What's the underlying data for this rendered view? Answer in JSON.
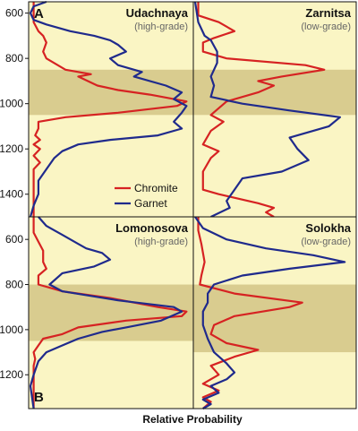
{
  "chart_data": {
    "type": "line",
    "xlabel": "Relative Probability",
    "ylabel": "",
    "colors": {
      "background": "#faf5c4",
      "band": "#d9cc8f",
      "Chromite": "#d62222",
      "Garnet": "#1f2a8c"
    },
    "legend": {
      "placement": "middle-right of panel A",
      "entries": [
        "Chromite",
        "Garnet"
      ]
    },
    "panels": [
      {
        "letter": "A",
        "title": "Udachnaya",
        "subtitle": "(high-grade)",
        "ylim": [
          550,
          1500
        ],
        "yticks": [
          600,
          800,
          1000,
          1200,
          1400
        ],
        "band": [
          850,
          1050
        ],
        "series": [
          {
            "name": "Chromite",
            "points": [
              [
                0.02,
                550
              ],
              [
                0.02,
                640
              ],
              [
                0.05,
                680
              ],
              [
                0.08,
                700
              ],
              [
                0.1,
                730
              ],
              [
                0.08,
                770
              ],
              [
                0.1,
                800
              ],
              [
                0.22,
                850
              ],
              [
                0.38,
                870
              ],
              [
                0.3,
                880
              ],
              [
                0.42,
                920
              ],
              [
                0.55,
                940
              ],
              [
                0.75,
                960
              ],
              [
                0.98,
                990
              ],
              [
                0.92,
                1010
              ],
              [
                0.55,
                1040
              ],
              [
                0.22,
                1060
              ],
              [
                0.05,
                1080
              ],
              [
                0.05,
                1110
              ],
              [
                0.03,
                1140
              ],
              [
                0.06,
                1160
              ],
              [
                0.02,
                1180
              ],
              [
                0.06,
                1200
              ],
              [
                0.02,
                1230
              ],
              [
                0.06,
                1260
              ],
              [
                0.02,
                1290
              ],
              [
                0.02,
                1500
              ]
            ]
          },
          {
            "name": "Garnet",
            "points": [
              [
                0.1,
                550
              ],
              [
                0.02,
                570
              ],
              [
                0.0,
                600
              ],
              [
                0.02,
                630
              ],
              [
                0.1,
                650
              ],
              [
                0.25,
                680
              ],
              [
                0.4,
                700
              ],
              [
                0.5,
                720
              ],
              [
                0.55,
                740
              ],
              [
                0.6,
                770
              ],
              [
                0.5,
                800
              ],
              [
                0.55,
                830
              ],
              [
                0.7,
                860
              ],
              [
                0.65,
                880
              ],
              [
                0.85,
                920
              ],
              [
                0.95,
                950
              ],
              [
                0.9,
                980
              ],
              [
                0.98,
                1010
              ],
              [
                0.95,
                1040
              ],
              [
                0.9,
                1080
              ],
              [
                0.95,
                1110
              ],
              [
                0.8,
                1140
              ],
              [
                0.5,
                1160
              ],
              [
                0.3,
                1180
              ],
              [
                0.2,
                1210
              ],
              [
                0.15,
                1240
              ],
              [
                0.1,
                1290
              ],
              [
                0.05,
                1340
              ],
              [
                0.05,
                1400
              ],
              [
                0.02,
                1450
              ],
              [
                0.0,
                1500
              ]
            ]
          }
        ]
      },
      {
        "letter": "",
        "title": "Zarnitsa",
        "subtitle": "(low-grade)",
        "ylim": [
          550,
          1500
        ],
        "yticks": [
          600,
          800,
          1000,
          1200,
          1400
        ],
        "band": [
          850,
          1050
        ],
        "series": [
          {
            "name": "Chromite",
            "points": [
              [
                0.02,
                550
              ],
              [
                0.02,
                610
              ],
              [
                0.15,
                640
              ],
              [
                0.25,
                680
              ],
              [
                0.12,
                710
              ],
              [
                0.05,
                730
              ],
              [
                0.05,
                770
              ],
              [
                0.2,
                800
              ],
              [
                0.7,
                830
              ],
              [
                0.82,
                850
              ],
              [
                0.55,
                880
              ],
              [
                0.4,
                900
              ],
              [
                0.5,
                920
              ],
              [
                0.4,
                950
              ],
              [
                0.2,
                990
              ],
              [
                0.1,
                1050
              ],
              [
                0.18,
                1080
              ],
              [
                0.1,
                1120
              ],
              [
                0.05,
                1180
              ],
              [
                0.15,
                1210
              ],
              [
                0.1,
                1240
              ],
              [
                0.05,
                1300
              ],
              [
                0.05,
                1380
              ],
              [
                0.15,
                1400
              ],
              [
                0.4,
                1440
              ],
              [
                0.5,
                1460
              ],
              [
                0.45,
                1480
              ],
              [
                0.5,
                1500
              ]
            ]
          },
          {
            "name": "Garnet",
            "points": [
              [
                0.0,
                550
              ],
              [
                0.02,
                640
              ],
              [
                0.06,
                700
              ],
              [
                0.1,
                720
              ],
              [
                0.14,
                770
              ],
              [
                0.14,
                820
              ],
              [
                0.12,
                850
              ],
              [
                0.1,
                880
              ],
              [
                0.12,
                920
              ],
              [
                0.1,
                970
              ],
              [
                0.3,
                1000
              ],
              [
                0.6,
                1030
              ],
              [
                0.92,
                1060
              ],
              [
                0.85,
                1100
              ],
              [
                0.6,
                1150
              ],
              [
                0.65,
                1200
              ],
              [
                0.72,
                1250
              ],
              [
                0.55,
                1300
              ],
              [
                0.3,
                1330
              ],
              [
                0.25,
                1380
              ],
              [
                0.2,
                1430
              ],
              [
                0.22,
                1460
              ],
              [
                0.1,
                1500
              ]
            ]
          }
        ]
      },
      {
        "letter": "B",
        "title": "Lomonosova",
        "subtitle": "(high-grade)",
        "ylim": [
          500,
          1350
        ],
        "yticks": [
          600,
          800,
          1000,
          1200
        ],
        "band": [
          800,
          1050
        ],
        "series": [
          {
            "name": "Chromite",
            "points": [
              [
                0.02,
                500
              ],
              [
                0.02,
                570
              ],
              [
                0.05,
                610
              ],
              [
                0.08,
                650
              ],
              [
                0.08,
                700
              ],
              [
                0.1,
                730
              ],
              [
                0.05,
                760
              ],
              [
                0.05,
                800
              ],
              [
                0.2,
                830
              ],
              [
                0.5,
                860
              ],
              [
                0.8,
                900
              ],
              [
                0.98,
                920
              ],
              [
                0.95,
                940
              ],
              [
                0.6,
                960
              ],
              [
                0.3,
                990
              ],
              [
                0.2,
                1020
              ],
              [
                0.08,
                1040
              ],
              [
                0.05,
                1070
              ],
              [
                0.02,
                1100
              ],
              [
                0.03,
                1130
              ],
              [
                0.02,
                1160
              ],
              [
                0.02,
                1200
              ],
              [
                0.02,
                1350
              ]
            ]
          },
          {
            "name": "Garnet",
            "points": [
              [
                0.05,
                500
              ],
              [
                0.1,
                540
              ],
              [
                0.2,
                580
              ],
              [
                0.3,
                620
              ],
              [
                0.35,
                640
              ],
              [
                0.45,
                660
              ],
              [
                0.5,
                690
              ],
              [
                0.4,
                720
              ],
              [
                0.2,
                750
              ],
              [
                0.12,
                800
              ],
              [
                0.2,
                830
              ],
              [
                0.55,
                870
              ],
              [
                0.9,
                900
              ],
              [
                0.95,
                920
              ],
              [
                0.82,
                960
              ],
              [
                0.6,
                990
              ],
              [
                0.45,
                1010
              ],
              [
                0.3,
                1040
              ],
              [
                0.2,
                1070
              ],
              [
                0.1,
                1100
              ],
              [
                0.05,
                1140
              ],
              [
                0.02,
                1200
              ],
              [
                0.0,
                1250
              ],
              [
                0.02,
                1350
              ]
            ]
          }
        ]
      },
      {
        "letter": "",
        "title": "Solokha",
        "subtitle": "(low-grade)",
        "ylim": [
          500,
          1350
        ],
        "yticks": [
          600,
          800,
          1000,
          1200
        ],
        "band": [
          800,
          1100
        ],
        "series": [
          {
            "name": "Chromite",
            "points": [
              [
                0.02,
                500
              ],
              [
                0.02,
                560
              ],
              [
                0.04,
                620
              ],
              [
                0.06,
                700
              ],
              [
                0.04,
                760
              ],
              [
                0.03,
                800
              ],
              [
                0.25,
                840
              ],
              [
                0.68,
                880
              ],
              [
                0.6,
                900
              ],
              [
                0.25,
                940
              ],
              [
                0.12,
                980
              ],
              [
                0.1,
                1020
              ],
              [
                0.2,
                1060
              ],
              [
                0.4,
                1090
              ],
              [
                0.25,
                1120
              ],
              [
                0.1,
                1160
              ],
              [
                0.15,
                1200
              ],
              [
                0.05,
                1240
              ],
              [
                0.15,
                1270
              ],
              [
                0.05,
                1300
              ],
              [
                0.1,
                1320
              ],
              [
                0.05,
                1350
              ]
            ]
          },
          {
            "name": "Garnet",
            "points": [
              [
                0.0,
                500
              ],
              [
                0.05,
                550
              ],
              [
                0.2,
                600
              ],
              [
                0.45,
                640
              ],
              [
                0.75,
                670
              ],
              [
                0.95,
                700
              ],
              [
                0.6,
                730
              ],
              [
                0.3,
                760
              ],
              [
                0.12,
                800
              ],
              [
                0.08,
                840
              ],
              [
                0.08,
                880
              ],
              [
                0.05,
                920
              ],
              [
                0.05,
                980
              ],
              [
                0.08,
                1040
              ],
              [
                0.12,
                1100
              ],
              [
                0.2,
                1150
              ],
              [
                0.25,
                1190
              ],
              [
                0.2,
                1220
              ],
              [
                0.1,
                1250
              ],
              [
                0.15,
                1280
              ],
              [
                0.05,
                1310
              ],
              [
                0.1,
                1330
              ],
              [
                0.05,
                1350
              ]
            ]
          }
        ]
      }
    ]
  }
}
